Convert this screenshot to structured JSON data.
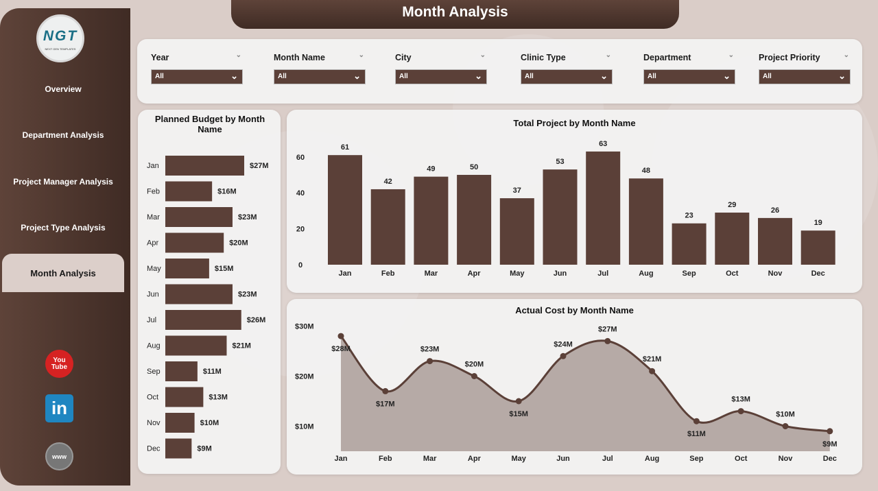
{
  "title": "Month Analysis",
  "logo": {
    "text": "NGT",
    "subtitle": "NEXT GEN TEMPLATES"
  },
  "sidebar": {
    "items": [
      {
        "label": "Overview"
      },
      {
        "label": "Department Analysis"
      },
      {
        "label": "Project Manager Analysis"
      },
      {
        "label": "Project Type Analysis"
      },
      {
        "label": "Month Analysis",
        "active": true
      }
    ],
    "social": [
      {
        "icon": "youtube-icon",
        "label": "You Tube"
      },
      {
        "icon": "linkedin-icon",
        "label": "in"
      },
      {
        "icon": "website-icon",
        "label": "www"
      }
    ]
  },
  "filters": [
    {
      "label": "Year",
      "value": "All"
    },
    {
      "label": "Month Name",
      "value": "All"
    },
    {
      "label": "City",
      "value": "All"
    },
    {
      "label": "Clinic Type",
      "value": "All"
    },
    {
      "label": "Department",
      "value": "All"
    },
    {
      "label": "Project Priority",
      "value": "All"
    }
  ],
  "colors": {
    "accent": "#5b4038",
    "area": "#b6aaa6",
    "background": "#dacdc8"
  },
  "chart_data": [
    {
      "type": "bar",
      "orientation": "horizontal",
      "title": "Planned Budget by Month Name",
      "categories": [
        "Jan",
        "Feb",
        "Mar",
        "Apr",
        "May",
        "Jun",
        "Jul",
        "Aug",
        "Sep",
        "Oct",
        "Nov",
        "Dec"
      ],
      "values": [
        27,
        16,
        23,
        20,
        15,
        23,
        26,
        21,
        11,
        13,
        10,
        9
      ],
      "labels": [
        "$27M",
        "$16M",
        "$23M",
        "$20M",
        "$15M",
        "$23M",
        "$26M",
        "$21M",
        "$11M",
        "$13M",
        "$10M",
        "$9M"
      ],
      "unit": "$M"
    },
    {
      "type": "bar",
      "title": "Total Project by Month Name",
      "categories": [
        "Jan",
        "Feb",
        "Mar",
        "Apr",
        "May",
        "Jun",
        "Jul",
        "Aug",
        "Sep",
        "Oct",
        "Nov",
        "Dec"
      ],
      "values": [
        61,
        42,
        49,
        50,
        37,
        53,
        63,
        48,
        23,
        29,
        26,
        19
      ],
      "yticks": [
        0,
        20,
        40,
        60
      ],
      "ylim": [
        0,
        65
      ]
    },
    {
      "type": "area",
      "title": "Actual Cost by Month Name",
      "categories": [
        "Jan",
        "Feb",
        "Mar",
        "Apr",
        "May",
        "Jun",
        "Jul",
        "Aug",
        "Sep",
        "Oct",
        "Nov",
        "Dec"
      ],
      "values": [
        28,
        17,
        23,
        20,
        15,
        24,
        27,
        21,
        11,
        13,
        10,
        9
      ],
      "labels": [
        "$28M",
        "$17M",
        "$23M",
        "$20M",
        "$15M",
        "$24M",
        "$27M",
        "$21M",
        "$11M",
        "$13M",
        "$10M",
        "$9M"
      ],
      "yticks": [
        {
          "v": 10,
          "label": "$10M"
        },
        {
          "v": 20,
          "label": "$20M"
        },
        {
          "v": 30,
          "label": "$30M"
        }
      ],
      "ylim": [
        5,
        30
      ],
      "unit": "$M"
    }
  ]
}
